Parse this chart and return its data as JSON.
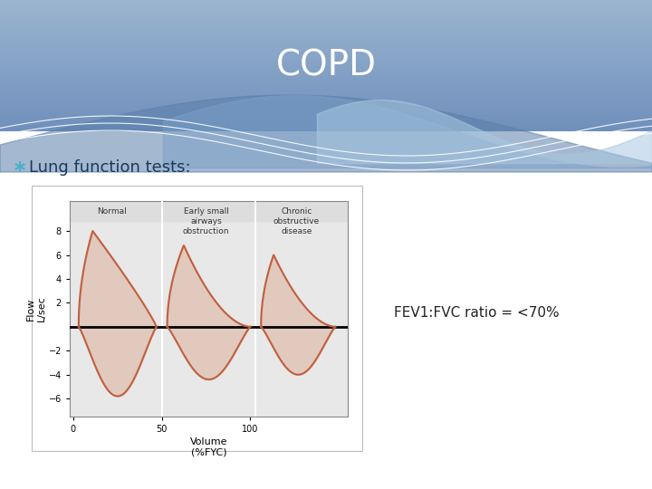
{
  "title": "COPD",
  "bullet_symbol": "∗",
  "bullet_text": "Lung function tests:",
  "annotation_text": "FEV1:FVC ratio = <70%",
  "title_color": "#FFFFFF",
  "header_color_top": "#6a8fba",
  "header_color_bottom": "#8aaece",
  "wave1_color": "#5a7faa",
  "wave2_color": "#8aaed0",
  "wave3_color": "#b0cce0",
  "bullet_color": "#4ab0c8",
  "bullet_text_color": "#1a3a5c",
  "annotation_color": "#222222",
  "graph_bg": "#e8e8e8",
  "curve_color": "#c06040",
  "curve_fill": "#d89070",
  "slide_bg": "#ffffff",
  "xlabel": "Volume\n(%FYC)",
  "ylabel": "Flow\nL/sec",
  "col_headers": [
    "Normal",
    "Early small\nairways\nobstruction",
    "Chronic\nobstructive\ndisease"
  ]
}
